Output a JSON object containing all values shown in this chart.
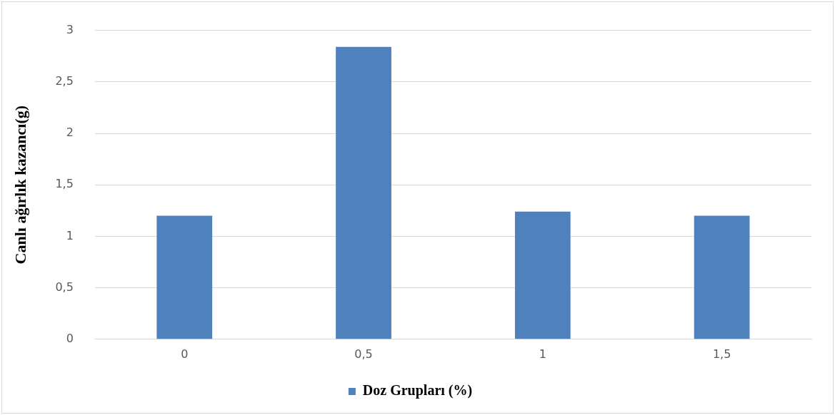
{
  "chart_data": {
    "type": "bar",
    "ylabel": "Canlı ağırlık kazancı(g)",
    "categories": [
      "0",
      "0,5",
      "1",
      "1,5"
    ],
    "series": [
      {
        "name": "Doz Grupları (%)",
        "color": "#4f81bd",
        "values": [
          1.2,
          2.84,
          1.24,
          1.2
        ]
      }
    ],
    "ylim": [
      0,
      3
    ],
    "yticks": [
      0,
      {
        "value": 0.5,
        "label": "0,5"
      },
      1,
      {
        "value": 1.5,
        "label": "1,5"
      },
      2,
      {
        "value": 2.5,
        "label": "2,5"
      },
      3
    ],
    "grid": "y",
    "legend": "bottom"
  }
}
